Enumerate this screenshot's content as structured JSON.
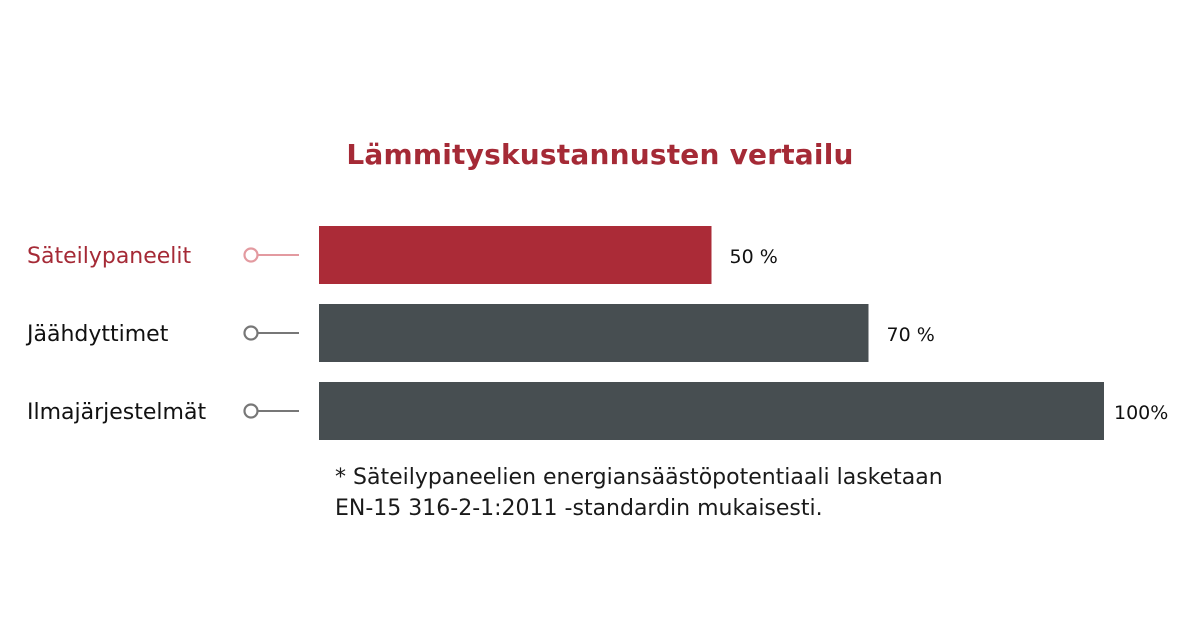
{
  "chart_data": {
    "type": "bar",
    "orientation": "horizontal",
    "title": "Lämmityskustannusten vertailu",
    "categories": [
      "Säteilypaneelit",
      "Jäähdyttimet",
      "Ilmajärjestelmät"
    ],
    "values": [
      50,
      70,
      100
    ],
    "value_labels": [
      "50 %",
      "70 %",
      "100%"
    ],
    "xlim": [
      0,
      100
    ],
    "grid": false,
    "colors": {
      "highlight": "#ab2b37",
      "default": "#474e51",
      "label_highlight": "#a52a36",
      "label_default": "#111111",
      "marker_highlight": "#e39aa0",
      "marker_default": "#777777"
    },
    "highlight_index": 0
  },
  "footnote": {
    "line1": "* Säteilypaneelien energiansäästöpotentiaali lasketaan",
    "line2": "EN-15 316-2-1:2011 -standardin mukaisesti."
  }
}
